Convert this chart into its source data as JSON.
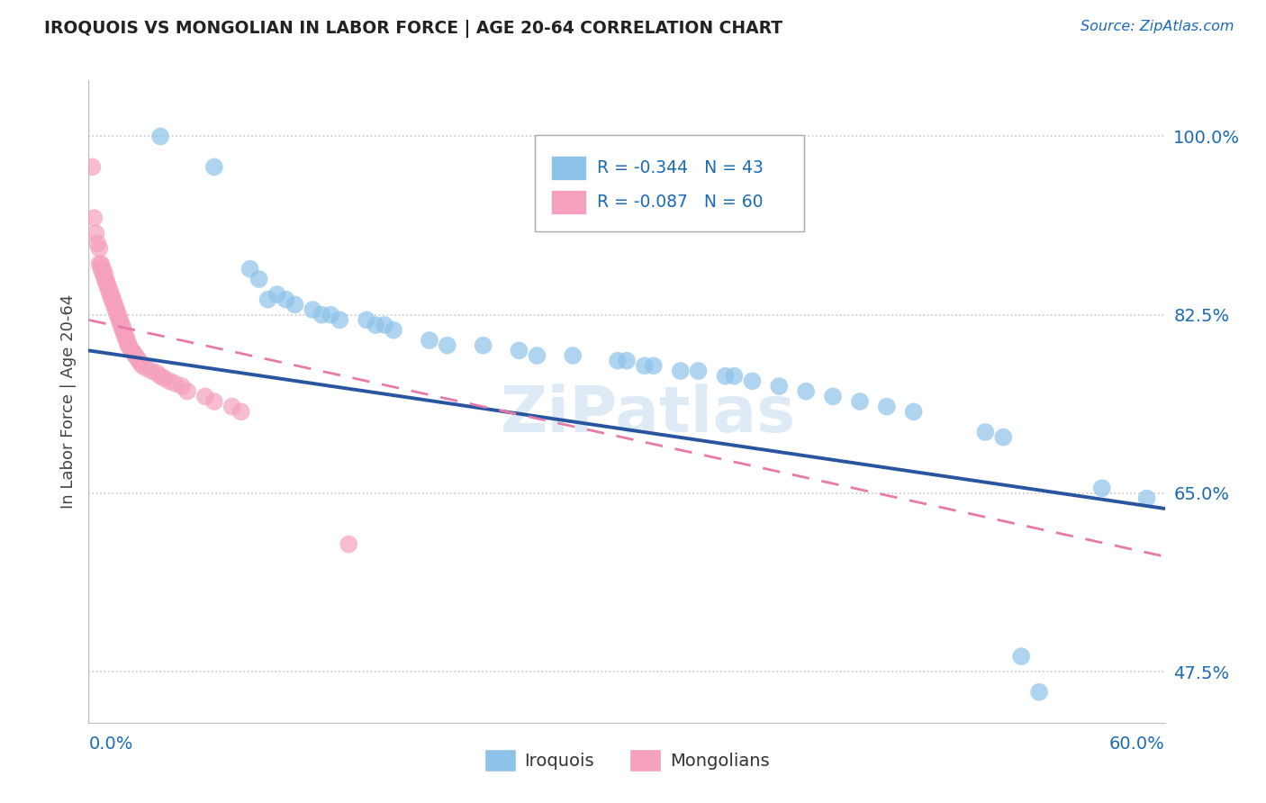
{
  "title": "IROQUOIS VS MONGOLIAN IN LABOR FORCE | AGE 20-64 CORRELATION CHART",
  "source": "Source: ZipAtlas.com",
  "ylabel": "In Labor Force | Age 20-64",
  "xlim": [
    0.0,
    0.6
  ],
  "ylim": [
    0.425,
    1.055
  ],
  "yticks": [
    0.475,
    0.65,
    0.825,
    1.0
  ],
  "ytick_labels": [
    "47.5%",
    "65.0%",
    "82.5%",
    "100.0%"
  ],
  "legend_r_iroquois": "R = -0.344",
  "legend_n_iroquois": "N = 43",
  "legend_r_mongolian": "R = -0.087",
  "legend_n_mongolian": "N = 60",
  "watermark": "ZiPatlas",
  "iroquois_color": "#8dc3eb",
  "mongolian_color": "#f5a0bc",
  "iroquois_line_color": "#2855a0",
  "mongolian_line_color": "#e87aaa",
  "iroquois_line_x0": 0.0,
  "iroquois_line_y0": 0.79,
  "iroquois_line_x1": 0.6,
  "iroquois_line_y1": 0.635,
  "mongolian_line_x0": 0.0,
  "mongolian_line_y0": 0.82,
  "mongolian_line_x1": 0.6,
  "mongolian_line_y1": 0.588,
  "iroquois_x": [
    0.04,
    0.07,
    0.09,
    0.095,
    0.1,
    0.105,
    0.11,
    0.115,
    0.125,
    0.13,
    0.135,
    0.14,
    0.155,
    0.16,
    0.165,
    0.17,
    0.19,
    0.2,
    0.22,
    0.24,
    0.25,
    0.27,
    0.295,
    0.3,
    0.31,
    0.315,
    0.33,
    0.34,
    0.355,
    0.36,
    0.37,
    0.385,
    0.4,
    0.415,
    0.43,
    0.445,
    0.46,
    0.5,
    0.51,
    0.52,
    0.53,
    0.565,
    0.59
  ],
  "iroquois_y": [
    1.0,
    0.97,
    0.87,
    0.86,
    0.84,
    0.845,
    0.84,
    0.835,
    0.83,
    0.825,
    0.825,
    0.82,
    0.82,
    0.815,
    0.815,
    0.81,
    0.8,
    0.795,
    0.795,
    0.79,
    0.785,
    0.785,
    0.78,
    0.78,
    0.775,
    0.775,
    0.77,
    0.77,
    0.765,
    0.765,
    0.76,
    0.755,
    0.75,
    0.745,
    0.74,
    0.735,
    0.73,
    0.71,
    0.705,
    0.49,
    0.455,
    0.655,
    0.645
  ],
  "mongolian_x": [
    0.002,
    0.003,
    0.004,
    0.005,
    0.006,
    0.006,
    0.007,
    0.007,
    0.008,
    0.008,
    0.009,
    0.009,
    0.01,
    0.01,
    0.011,
    0.011,
    0.012,
    0.012,
    0.013,
    0.013,
    0.014,
    0.014,
    0.015,
    0.015,
    0.016,
    0.016,
    0.017,
    0.017,
    0.018,
    0.018,
    0.019,
    0.019,
    0.02,
    0.02,
    0.021,
    0.021,
    0.022,
    0.022,
    0.023,
    0.024,
    0.025,
    0.026,
    0.027,
    0.028,
    0.029,
    0.03,
    0.032,
    0.035,
    0.038,
    0.04,
    0.042,
    0.045,
    0.048,
    0.052,
    0.055,
    0.065,
    0.07,
    0.08,
    0.085,
    0.145
  ],
  "mongolian_y": [
    0.97,
    0.92,
    0.905,
    0.895,
    0.89,
    0.875,
    0.875,
    0.87,
    0.87,
    0.865,
    0.865,
    0.86,
    0.858,
    0.855,
    0.853,
    0.85,
    0.848,
    0.845,
    0.843,
    0.84,
    0.838,
    0.835,
    0.833,
    0.83,
    0.828,
    0.825,
    0.823,
    0.82,
    0.818,
    0.815,
    0.813,
    0.81,
    0.808,
    0.805,
    0.803,
    0.8,
    0.798,
    0.795,
    0.793,
    0.79,
    0.788,
    0.785,
    0.783,
    0.78,
    0.778,
    0.775,
    0.773,
    0.77,
    0.768,
    0.765,
    0.763,
    0.76,
    0.758,
    0.755,
    0.75,
    0.745,
    0.74,
    0.735,
    0.73,
    0.6
  ]
}
